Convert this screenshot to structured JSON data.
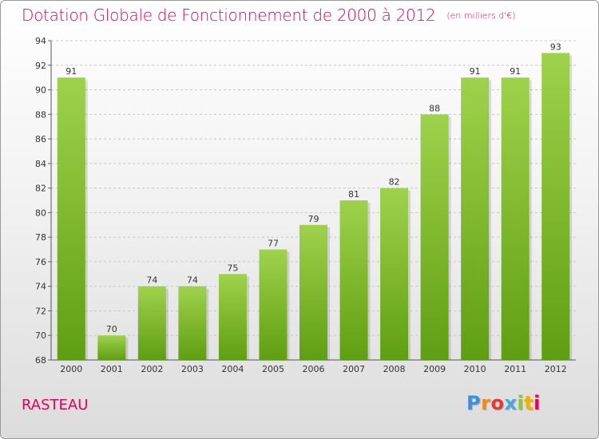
{
  "header": {
    "title": "Dotation Globale de Fonctionnement de 2000 à 2012",
    "unit": "(en milliers d'€)"
  },
  "footer": {
    "commune": "RASTEAU",
    "logo_letters": [
      "P",
      "r",
      "o",
      "x",
      "i",
      "t",
      "i"
    ],
    "logo_colors": [
      "#3f8fd6",
      "#f08a1c",
      "#e63c2e",
      "#4aa6e0",
      "#8cc63f",
      "#f0b400",
      "#e5005b"
    ]
  },
  "colors": {
    "accent": "#e5005b",
    "bar_top": "#9fd24c",
    "bar_bottom": "#5f9e12",
    "grid": "#c8c8c8"
  },
  "chart_data": {
    "type": "bar",
    "categories": [
      "2000",
      "2001",
      "2002",
      "2003",
      "2004",
      "2005",
      "2006",
      "2007",
      "2008",
      "2009",
      "2010",
      "2011",
      "2012"
    ],
    "values": [
      91,
      70,
      74,
      74,
      75,
      77,
      79,
      81,
      82,
      88,
      91,
      91,
      93
    ],
    "title": "Dotation Globale de Fonctionnement de 2000 à 2012",
    "ylim": [
      68,
      94
    ],
    "yticks": [
      68,
      70,
      72,
      74,
      76,
      78,
      80,
      82,
      84,
      86,
      88,
      90,
      92,
      94
    ],
    "grid": true,
    "data_labels": true
  }
}
